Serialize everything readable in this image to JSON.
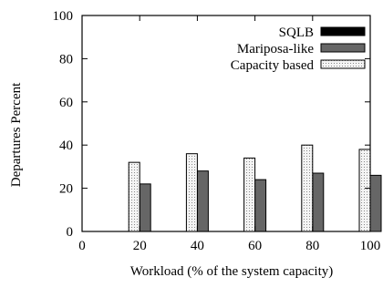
{
  "chart_data": {
    "type": "bar",
    "categories": [
      "20",
      "40",
      "60",
      "80",
      "100"
    ],
    "x_ticks": [
      "0",
      "20",
      "40",
      "60",
      "80",
      "100"
    ],
    "series": [
      {
        "name": "SQLB",
        "values": [
          0,
          0,
          0,
          0,
          0
        ],
        "color": "#000000",
        "pattern": "solid"
      },
      {
        "name": "Mariposa-like",
        "values": [
          22,
          28,
          24,
          27,
          26
        ],
        "color": "#666666",
        "pattern": "solid"
      },
      {
        "name": "Capacity based",
        "values": [
          32,
          36,
          34,
          40,
          38
        ],
        "color": "#f0f0f0",
        "pattern": "dotted"
      }
    ],
    "xlabel": "Workload (% of the system capacity)",
    "ylabel": "Departures Percent",
    "ylim": [
      0,
      100
    ],
    "y_ticks": [
      "0",
      "20",
      "40",
      "60",
      "80",
      "100"
    ],
    "xlim": [
      0,
      100
    ],
    "legend_position": "top-right",
    "grid": false
  }
}
